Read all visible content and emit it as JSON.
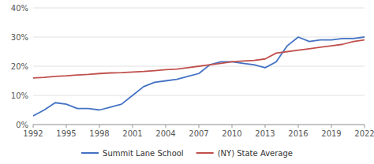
{
  "chart_data": {
    "type": "line",
    "x": [
      1992,
      1993,
      1994,
      1995,
      1996,
      1997,
      1998,
      1999,
      2000,
      2001,
      2002,
      2003,
      2004,
      2005,
      2006,
      2007,
      2008,
      2009,
      2010,
      2011,
      2012,
      2013,
      2014,
      2015,
      2016,
      2017,
      2018,
      2019,
      2020,
      2021,
      2022
    ],
    "series": [
      {
        "name": "Summit Lane School",
        "color": "#4472c4",
        "values": [
          0.03,
          0.05,
          0.075,
          0.07,
          0.055,
          0.055,
          0.05,
          0.06,
          0.07,
          0.1,
          0.13,
          0.145,
          0.15,
          0.155,
          0.165,
          0.175,
          0.205,
          0.215,
          0.215,
          0.21,
          0.205,
          0.195,
          0.215,
          0.27,
          0.3,
          0.285,
          0.29,
          0.29,
          0.295,
          0.295,
          0.3
        ]
      },
      {
        "name": "(NY) State Average",
        "color": "#c0504d",
        "values": [
          0.16,
          0.162,
          0.165,
          0.167,
          0.17,
          0.172,
          0.175,
          0.177,
          0.178,
          0.18,
          0.182,
          0.185,
          0.188,
          0.19,
          0.195,
          0.2,
          0.205,
          0.21,
          0.215,
          0.218,
          0.22,
          0.225,
          0.245,
          0.25,
          0.255,
          0.26,
          0.265,
          0.27,
          0.275,
          0.285,
          0.29
        ]
      }
    ],
    "xlim": [
      1992,
      2022
    ],
    "xticks": [
      1992,
      1995,
      1998,
      2001,
      2004,
      2007,
      2010,
      2013,
      2016,
      2019,
      2022
    ],
    "ylim": [
      0,
      0.4
    ],
    "yticks": [
      {
        "value": 0,
        "label": "0%"
      },
      {
        "value": 0.1,
        "label": "10%"
      },
      {
        "value": 0.2,
        "label": "20%"
      },
      {
        "value": 0.3,
        "label": "30%"
      },
      {
        "value": 0.4,
        "label": "40%"
      }
    ],
    "grid": true,
    "legend": "bottom"
  }
}
